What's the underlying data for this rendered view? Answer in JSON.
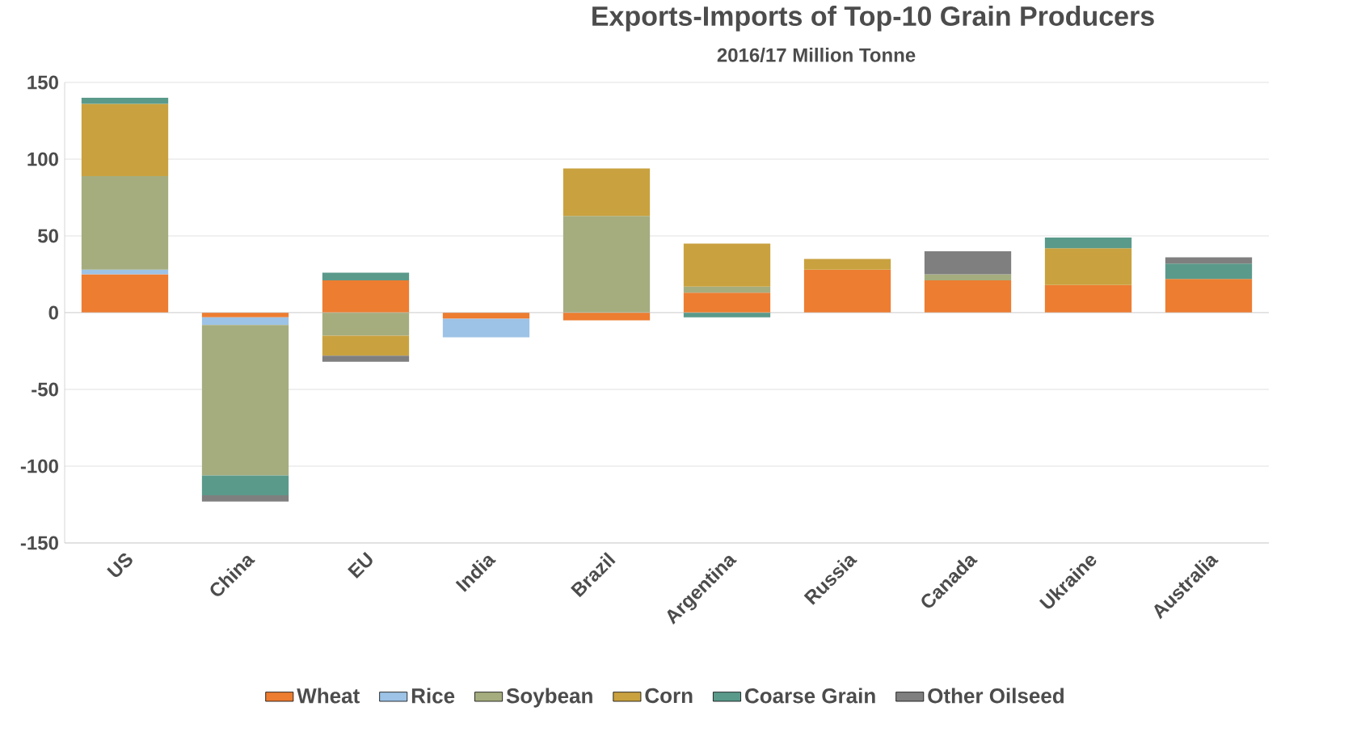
{
  "chart_data": {
    "type": "bar",
    "title": "Exports-Imports of Top-10 Grain Producers",
    "subtitle": "2016/17 Million Tonne",
    "categories": [
      "US",
      "China",
      "EU",
      "India",
      "Brazil",
      "Argentina",
      "Russia",
      "Canada",
      "Ukraine",
      "Australia"
    ],
    "stacked": true,
    "ylim": [
      -150,
      150
    ],
    "yticks": [
      -150,
      -100,
      -50,
      0,
      50,
      100,
      150
    ],
    "grid": "y",
    "legend": "bottom",
    "series": [
      {
        "name": "Wheat",
        "color": "#ed7d31",
        "values": [
          25,
          -3,
          21,
          -4,
          -5,
          13,
          28,
          21,
          18,
          22
        ]
      },
      {
        "name": "Rice",
        "color": "#9dc3e6",
        "values": [
          3,
          -5,
          0,
          -12,
          0,
          0,
          0,
          0,
          0,
          0
        ]
      },
      {
        "name": "Soybean",
        "color": "#a5ad7f",
        "values": [
          61,
          -98,
          -15,
          0,
          63,
          4,
          0,
          4,
          0,
          0
        ]
      },
      {
        "name": "Corn",
        "color": "#c9a23f",
        "values": [
          47,
          0,
          -13,
          0,
          31,
          28,
          7,
          0,
          24,
          0
        ]
      },
      {
        "name": "Coarse Grain",
        "color": "#5a9a8b",
        "values": [
          4,
          -13,
          5,
          0,
          0,
          -3,
          0,
          0,
          7,
          10
        ]
      },
      {
        "name": "Other Oilseed",
        "color": "#7f7f7f",
        "values": [
          0,
          -4,
          -4,
          0,
          0,
          0,
          0,
          15,
          0,
          4
        ]
      }
    ]
  }
}
